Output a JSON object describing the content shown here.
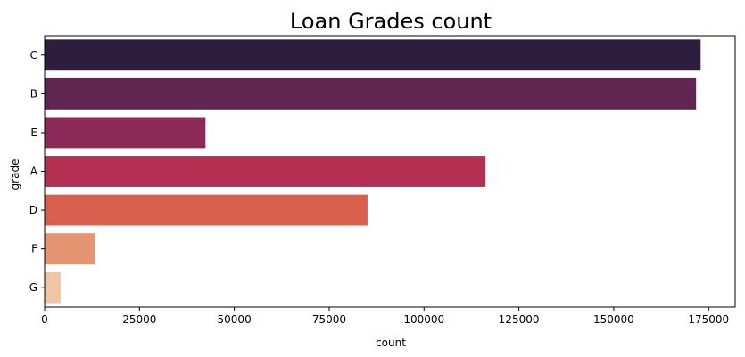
{
  "chart_data": {
    "type": "bar",
    "orientation": "horizontal",
    "title": "Loan Grades count",
    "xlabel": "count",
    "ylabel": "grade",
    "categories": [
      "C",
      "B",
      "E",
      "A",
      "D",
      "F",
      "G"
    ],
    "values": [
      172900,
      171700,
      42400,
      116200,
      85100,
      13200,
      4200
    ],
    "colors": [
      "#2d1e3e",
      "#5e2650",
      "#8b2a57",
      "#b52f53",
      "#d95f4f",
      "#e59572",
      "#f0c4a4"
    ],
    "xlim": [
      0,
      182000
    ],
    "xticks": [
      0,
      25000,
      50000,
      75000,
      100000,
      125000,
      150000,
      175000
    ],
    "grid": false,
    "legend": "none"
  }
}
